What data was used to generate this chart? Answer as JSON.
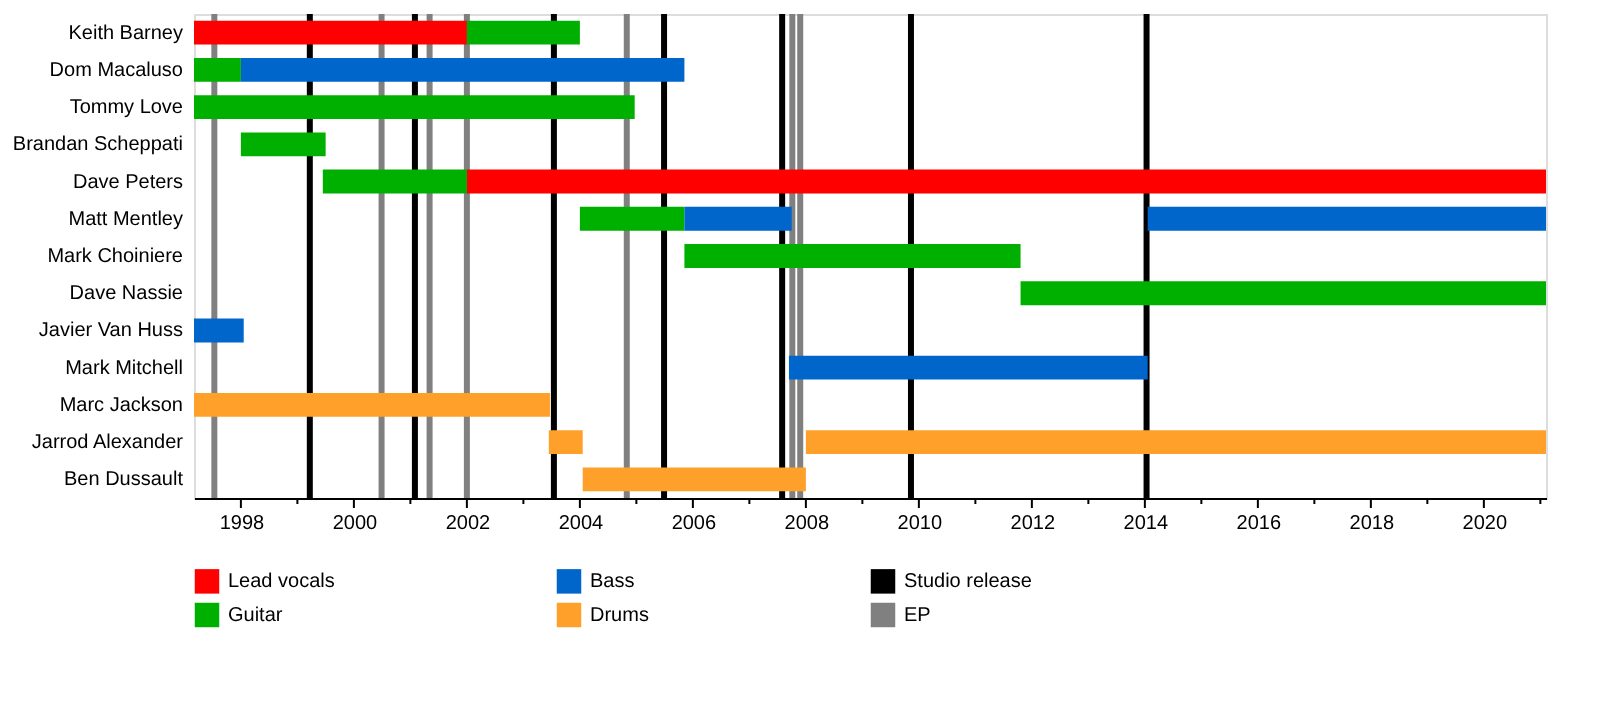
{
  "chart_data": {
    "type": "bar",
    "orientation": "horizontal",
    "categories": [
      "Keith Barney",
      "Dom Macaluso",
      "Tommy Love",
      "Brandan Scheppati",
      "Dave Peters",
      "Matt Mentley",
      "Mark Choiniere",
      "Dave Nassie",
      "Javier Van Huss",
      "Mark Mitchell",
      "Marc Jackson",
      "Jarrod Alexander",
      "Ben Dussault"
    ],
    "series": [
      {
        "name": "Lead vocals",
        "color": "#ff0000",
        "base": [
          1997.17,
          null,
          null,
          null,
          2002.0,
          null,
          null,
          null,
          null,
          null,
          null,
          null,
          null
        ],
        "values": [
          4.83,
          null,
          null,
          null,
          19.1,
          null,
          null,
          null,
          null,
          null,
          null,
          null,
          null
        ]
      },
      {
        "name": "Guitar",
        "color": "#00b000",
        "base": [
          2002.0,
          1997.17,
          1997.17,
          1998.0,
          1999.45,
          2004.0,
          2005.85,
          2011.8,
          null,
          null,
          null,
          null,
          null
        ],
        "values": [
          2.0,
          0.83,
          7.8,
          1.5,
          2.55,
          1.85,
          5.95,
          9.3,
          null,
          null,
          null,
          null,
          null
        ]
      },
      {
        "name": "Bass",
        "color": "#0066cc",
        "base": [
          null,
          1998.0,
          null,
          null,
          null,
          2005.85,
          null,
          null,
          1997.17,
          2007.7,
          null,
          null,
          null
        ],
        "values": [
          null,
          7.85,
          null,
          null,
          null,
          1.9,
          null,
          null,
          0.88,
          6.35,
          null,
          null,
          null
        ]
      },
      {
        "color": "#0066cc",
        "base": [
          null,
          null,
          null,
          null,
          null,
          2014.05,
          null,
          null,
          null,
          null,
          null,
          null,
          null
        ],
        "values": [
          null,
          null,
          null,
          null,
          null,
          7.05,
          null,
          null,
          null,
          null,
          null,
          null,
          null
        ]
      },
      {
        "name": "Drums",
        "color": "#ffa02a",
        "base": [
          null,
          null,
          null,
          null,
          null,
          null,
          null,
          null,
          null,
          null,
          1997.17,
          2003.45,
          2004.05
        ],
        "values": [
          null,
          null,
          null,
          null,
          null,
          null,
          null,
          null,
          null,
          null,
          6.3,
          0.6,
          3.95
        ]
      },
      {
        "color": "#ffa02a",
        "base": [
          null,
          null,
          null,
          null,
          null,
          null,
          null,
          null,
          null,
          null,
          null,
          2008.0,
          null
        ],
        "values": [
          null,
          null,
          null,
          null,
          null,
          null,
          null,
          null,
          null,
          null,
          null,
          13.1,
          null
        ]
      }
    ],
    "xlim": [
      1997.17,
      2021.1
    ],
    "xticks": [
      1998,
      {
        "value": 1999,
        "label": null
      },
      2000,
      {
        "value": 2001,
        "label": null
      },
      2002,
      {
        "value": 2003,
        "label": null
      },
      2004,
      {
        "value": 2005,
        "label": null
      },
      2006,
      {
        "value": 2007,
        "label": null
      },
      2008,
      {
        "value": 2009,
        "label": null
      },
      2010,
      {
        "value": 2011,
        "label": null
      },
      2012,
      {
        "value": 2013,
        "label": null
      },
      2014,
      {
        "value": 2015,
        "label": null
      },
      2016,
      {
        "value": 2017,
        "label": null
      },
      2018,
      {
        "value": 2019,
        "label": null
      },
      2020,
      {
        "value": 2021,
        "label": null
      }
    ],
    "ref_lines": [
      {
        "axis": "x",
        "value": 1999.22,
        "label": "Studio release",
        "color": "#000000"
      },
      {
        "axis": "x",
        "value": 1997.53,
        "label": "EP",
        "color": "#808080"
      },
      {
        "axis": "x",
        "value": 2000.49,
        "color": "#808080"
      },
      {
        "axis": "x",
        "value": 2001.08,
        "color": "#000000"
      },
      {
        "axis": "x",
        "value": 2001.34,
        "color": "#808080"
      },
      {
        "axis": "x",
        "value": 2002.0,
        "color": "#808080"
      },
      {
        "axis": "x",
        "value": 2003.54,
        "color": "#000000"
      },
      {
        "axis": "x",
        "value": 2004.83,
        "color": "#808080"
      },
      {
        "axis": "x",
        "value": 2005.49,
        "color": "#000000"
      },
      {
        "axis": "x",
        "value": 2007.58,
        "color": "#000000"
      },
      {
        "axis": "x",
        "value": 2007.76,
        "color": "#808080"
      },
      {
        "axis": "x",
        "value": 2007.9,
        "color": "#808080"
      },
      {
        "axis": "x",
        "value": 2009.86,
        "color": "#000000"
      },
      {
        "axis": "x",
        "value": 2014.03,
        "color": "#000000"
      }
    ],
    "grid": false,
    "legend": "bottom"
  }
}
